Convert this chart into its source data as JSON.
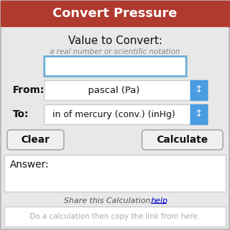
{
  "title": "Convert Pressure",
  "title_bg_color": "#b03a2e",
  "title_text_color": "#ffffff",
  "bg_color": "#e8e8e8",
  "subtitle": "Value to Convert:",
  "hint_text": "a real number or scientific notation",
  "hint_color": "#888888",
  "input_box_border": "#6baed6",
  "from_label": "From:",
  "from_value": "pascal (Pa)",
  "to_label": "To:",
  "to_value": "in of mercury (conv.) (inHg)",
  "dropdown_bg": "#4a9de0",
  "dropdown_border": "#4a9de0",
  "clear_btn": "Clear",
  "calc_btn": "Calculate",
  "btn_bg": "#f0f0f0",
  "btn_border": "#aaaaaa",
  "answer_label": "Answer:",
  "answer_box_bg": "#ffffff",
  "answer_box_border": "#cccccc",
  "share_text": "Share this Calculation: ",
  "share_link": "help",
  "share_italic_color": "#555555",
  "share_link_color": "#0000cc",
  "copy_hint": "Do a calculation then copy the link from here.",
  "copy_hint_color": "#aaaaaa",
  "outer_border_color": "#bbbbbb"
}
